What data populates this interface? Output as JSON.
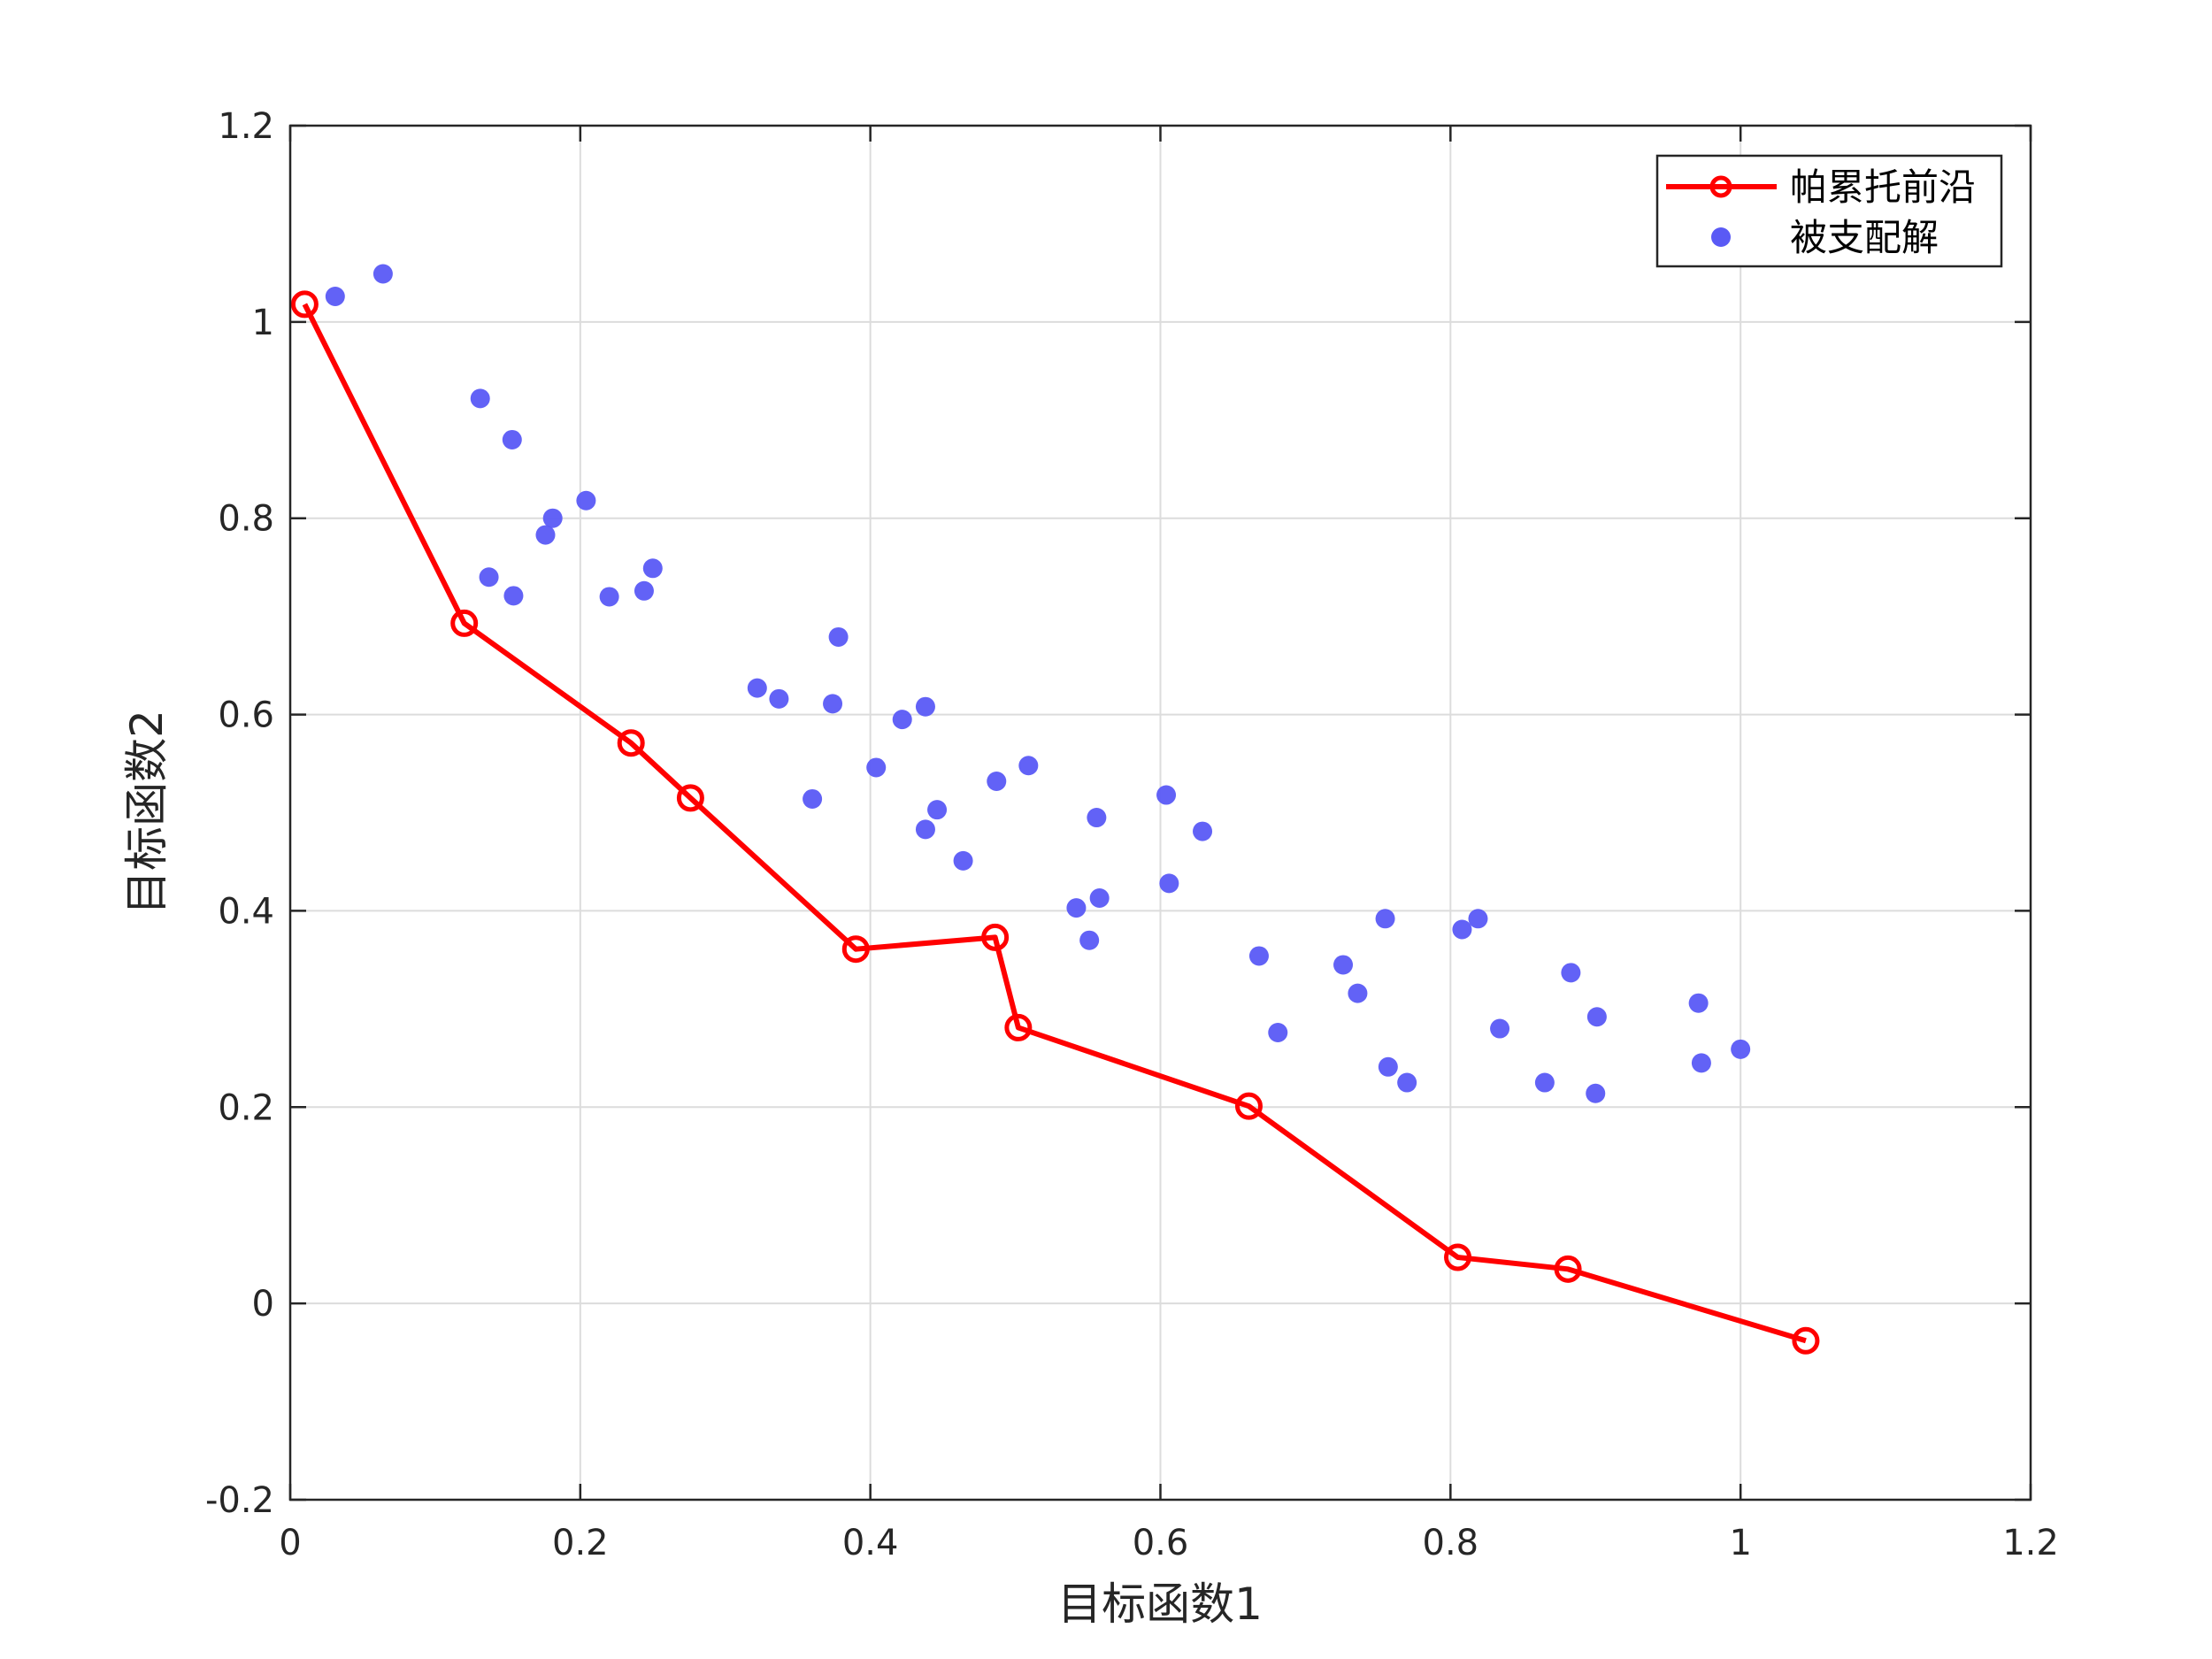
{
  "chart_data": {
    "type": "scatter",
    "xlabel": "目标函数1",
    "ylabel": "目标函数2",
    "xlim": [
      0,
      1.2
    ],
    "ylim": [
      -0.2,
      1.2
    ],
    "xticks": [
      0,
      0.2,
      0.4,
      0.6,
      0.8,
      1,
      1.2
    ],
    "yticks": [
      -0.2,
      0,
      0.2,
      0.4,
      0.6,
      0.8,
      1,
      1.2
    ],
    "xtick_labels": [
      "0",
      "0.2",
      "0.4",
      "0.6",
      "0.8",
      "1",
      "1.2"
    ],
    "ytick_labels": [
      "-0.2",
      "0",
      "0.2",
      "0.4",
      "0.6",
      "0.8",
      "1",
      "1.2"
    ],
    "grid": true,
    "legend_position": "top-right",
    "series": [
      {
        "name": "帕累托前沿",
        "style": "line-with-circle-markers",
        "color": "#ff0000",
        "points": [
          [
            0.01,
            1.018
          ],
          [
            0.12,
            0.693
          ],
          [
            0.235,
            0.571
          ],
          [
            0.276,
            0.515
          ],
          [
            0.39,
            0.361
          ],
          [
            0.486,
            0.373
          ],
          [
            0.502,
            0.281
          ],
          [
            0.661,
            0.201
          ],
          [
            0.805,
            0.047
          ],
          [
            0.881,
            0.035
          ],
          [
            1.045,
            -0.038
          ]
        ]
      },
      {
        "name": "被支配解",
        "style": "filled-dots",
        "color": "#5a5af5",
        "points": [
          [
            0.031,
            1.026
          ],
          [
            0.064,
            1.049
          ],
          [
            0.131,
            0.922
          ],
          [
            0.153,
            0.88
          ],
          [
            0.181,
            0.8
          ],
          [
            0.176,
            0.783
          ],
          [
            0.204,
            0.818
          ],
          [
            0.137,
            0.74
          ],
          [
            0.154,
            0.721
          ],
          [
            0.22,
            0.72
          ],
          [
            0.244,
            0.726
          ],
          [
            0.25,
            0.749
          ],
          [
            0.322,
            0.627
          ],
          [
            0.337,
            0.616
          ],
          [
            0.374,
            0.611
          ],
          [
            0.378,
            0.679
          ],
          [
            0.36,
            0.514
          ],
          [
            0.404,
            0.546
          ],
          [
            0.422,
            0.595
          ],
          [
            0.438,
            0.608
          ],
          [
            0.446,
            0.503
          ],
          [
            0.438,
            0.483
          ],
          [
            0.464,
            0.451
          ],
          [
            0.487,
            0.532
          ],
          [
            0.509,
            0.548
          ],
          [
            0.556,
            0.495
          ],
          [
            0.604,
            0.518
          ],
          [
            0.629,
            0.481
          ],
          [
            0.542,
            0.403
          ],
          [
            0.558,
            0.413
          ],
          [
            0.551,
            0.37
          ],
          [
            0.606,
            0.428
          ],
          [
            0.668,
            0.354
          ],
          [
            0.681,
            0.276
          ],
          [
            0.726,
            0.345
          ],
          [
            0.736,
            0.316
          ],
          [
            0.755,
            0.392
          ],
          [
            0.757,
            0.241
          ],
          [
            0.77,
            0.225
          ],
          [
            0.808,
            0.381
          ],
          [
            0.819,
            0.392
          ],
          [
            0.834,
            0.28
          ],
          [
            0.865,
            0.225
          ],
          [
            0.883,
            0.337
          ],
          [
            0.9,
            0.214
          ],
          [
            0.901,
            0.292
          ],
          [
            0.971,
            0.306
          ],
          [
            0.973,
            0.245
          ],
          [
            1.0,
            0.259
          ]
        ]
      }
    ]
  }
}
